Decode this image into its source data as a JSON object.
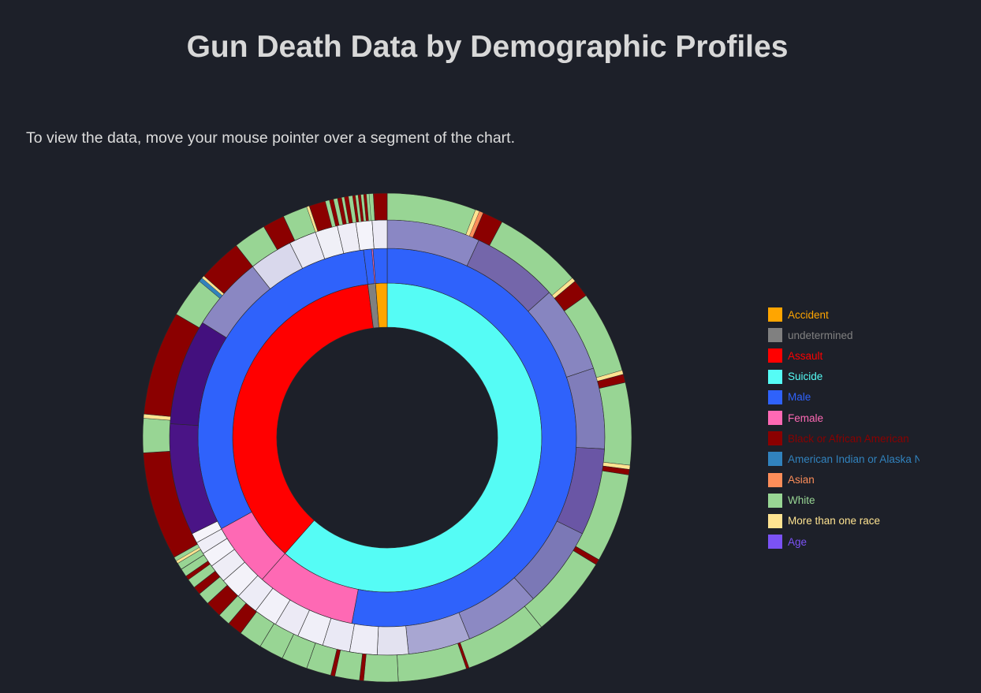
{
  "title": "Gun Death Data by Demographic Profiles",
  "instructions": "To view the data, move your mouse pointer over a segment of the chart.",
  "legend": [
    {
      "label": "Accident",
      "color": "#ffa500"
    },
    {
      "label": "undetermined",
      "color": "#808080"
    },
    {
      "label": "Assault",
      "color": "#ff0000"
    },
    {
      "label": "Suicide",
      "color": "#55fcf5"
    },
    {
      "label": "Male",
      "color": "#2f62fb"
    },
    {
      "label": "Female",
      "color": "#fe69b4"
    },
    {
      "label": "Black or African American",
      "color": "#8b0000"
    },
    {
      "label": "American Indian or Alaska Native",
      "color": "#3182bd"
    },
    {
      "label": "Asian",
      "color": "#fc8d59"
    },
    {
      "label": "White",
      "color": "#98d594"
    },
    {
      "label": "More than one race",
      "color": "#fee391"
    },
    {
      "label": "Age",
      "color": "#7b52f5"
    }
  ],
  "chart_data": {
    "type": "sunburst",
    "title": "Gun Death Data by Demographic Profiles",
    "start_angle_deg": 0,
    "rings": [
      {
        "level": "intent",
        "segments": [
          {
            "name": "Suicide",
            "value": 61.5,
            "color": "#55fcf5"
          },
          {
            "name": "Assault",
            "value": 36.5,
            "color": "#ff0000"
          },
          {
            "name": "undetermined",
            "value": 0.8,
            "color": "#808080"
          },
          {
            "name": "Accident",
            "value": 1.2,
            "color": "#ffa500"
          }
        ]
      },
      {
        "level": "sex",
        "segments": [
          {
            "name": "Male",
            "value": 53,
            "color": "#2f62fb"
          },
          {
            "name": "Female",
            "value": 8.5,
            "color": "#fe69b4"
          },
          {
            "name": "Female",
            "value": 5.5,
            "color": "#fe69b4"
          },
          {
            "name": "Male",
            "value": 31,
            "color": "#2f62fb"
          },
          {
            "name": "Male",
            "value": 0.7,
            "color": "#2f62fb"
          },
          {
            "name": "Female",
            "value": 0.1,
            "color": "#fe69b4"
          },
          {
            "name": "Male",
            "value": 1.2,
            "color": "#2f62fb"
          }
        ]
      },
      {
        "level": "age",
        "segments": [
          {
            "name": "Age",
            "value": 7.5,
            "color": "#8a87c4"
          },
          {
            "name": "Age",
            "value": 7,
            "color": "#7466aa"
          },
          {
            "name": "Age",
            "value": 7,
            "color": "#8785c0"
          },
          {
            "name": "Age",
            "value": 6.5,
            "color": "#807dba"
          },
          {
            "name": "Age",
            "value": 7,
            "color": "#6a56a5"
          },
          {
            "name": "Age",
            "value": 6.5,
            "color": "#7b78b6"
          },
          {
            "name": "Age",
            "value": 6,
            "color": "#8c89c3"
          },
          {
            "name": "Age",
            "value": 5,
            "color": "#a8a6d2"
          },
          {
            "name": "Age",
            "value": 2.5,
            "color": "#e3e2f0"
          },
          {
            "name": "Age",
            "value": 2.2,
            "color": "#eeedf7"
          },
          {
            "name": "Age",
            "value": 2.2,
            "color": "#eae9f5"
          },
          {
            "name": "Age",
            "value": 2.1,
            "color": "#f0eff8"
          },
          {
            "name": "Age",
            "value": 2,
            "color": "#eceaf5"
          },
          {
            "name": "Age",
            "value": 1.9,
            "color": "#f2f1f9"
          },
          {
            "name": "Age",
            "value": 1.8,
            "color": "#edecf6"
          },
          {
            "name": "Age",
            "value": 1.7,
            "color": "#f3f2f9"
          },
          {
            "name": "Age",
            "value": 1.5,
            "color": "#eeedf6"
          },
          {
            "name": "Age",
            "value": 1.2,
            "color": "#f4f3fa"
          },
          {
            "name": "Age",
            "value": 1,
            "color": "#efeef7"
          },
          {
            "name": "Age",
            "value": 0.8,
            "color": "#f5f4fa"
          },
          {
            "name": "Age",
            "value": 9,
            "color": "#4a1486"
          },
          {
            "name": "Age",
            "value": 8.5,
            "color": "#43107e"
          },
          {
            "name": "Age",
            "value": 6,
            "color": "#8a87c2"
          },
          {
            "name": "Age",
            "value": 3.5,
            "color": "#d9d8ec"
          },
          {
            "name": "Age",
            "value": 2.2,
            "color": "#e9e8f4"
          },
          {
            "name": "Age",
            "value": 1.8,
            "color": "#f0f0f7"
          },
          {
            "name": "Age",
            "value": 1.5,
            "color": "#eeedf6"
          },
          {
            "name": "Age",
            "value": 1.3,
            "color": "#f4f3fa"
          },
          {
            "name": "Age",
            "value": 1.2,
            "color": "#eceaf5"
          }
        ]
      },
      {
        "level": "race",
        "segments": [
          {
            "name": "White",
            "value": 6.5,
            "color": "#98d594"
          },
          {
            "name": "More than one race",
            "value": 0.3,
            "color": "#fee391"
          },
          {
            "name": "Asian",
            "value": 0.3,
            "color": "#fc8d59"
          },
          {
            "name": "Black or African American",
            "value": 1.5,
            "color": "#8b0000"
          },
          {
            "name": "White",
            "value": 6.5,
            "color": "#98d594"
          },
          {
            "name": "More than one race",
            "value": 0.3,
            "color": "#fee391"
          },
          {
            "name": "Black or African American",
            "value": 1.3,
            "color": "#8b0000"
          },
          {
            "name": "White",
            "value": 6,
            "color": "#98d594"
          },
          {
            "name": "More than one race",
            "value": 0.3,
            "color": "#fee391"
          },
          {
            "name": "Black or African American",
            "value": 0.6,
            "color": "#8b0000"
          },
          {
            "name": "White",
            "value": 6,
            "color": "#98d594"
          },
          {
            "name": "More than one race",
            "value": 0.3,
            "color": "#fee391"
          },
          {
            "name": "Black or African American",
            "value": 0.4,
            "color": "#8b0000"
          },
          {
            "name": "White",
            "value": 6.5,
            "color": "#98d594"
          },
          {
            "name": "Black or African American",
            "value": 0.4,
            "color": "#8b0000"
          },
          {
            "name": "White",
            "value": 6,
            "color": "#98d594"
          },
          {
            "name": "White",
            "value": 6,
            "color": "#98d594"
          },
          {
            "name": "Black or African American",
            "value": 0.2,
            "color": "#8b0000"
          },
          {
            "name": "White",
            "value": 5,
            "color": "#98d594"
          },
          {
            "name": "White",
            "value": 2.5,
            "color": "#98d594"
          },
          {
            "name": "Black or African American",
            "value": 0.3,
            "color": "#8b0000"
          },
          {
            "name": "White",
            "value": 1.8,
            "color": "#98d594"
          },
          {
            "name": "Black or African American",
            "value": 0.3,
            "color": "#8b0000"
          },
          {
            "name": "White",
            "value": 1.8,
            "color": "#98d594"
          },
          {
            "name": "White",
            "value": 1.9,
            "color": "#98d594"
          },
          {
            "name": "White",
            "value": 1.8,
            "color": "#98d594"
          },
          {
            "name": "White",
            "value": 1.7,
            "color": "#98d594"
          },
          {
            "name": "Black or African American",
            "value": 1.1,
            "color": "#8b0000"
          },
          {
            "name": "White",
            "value": 0.9,
            "color": "#98d594"
          },
          {
            "name": "Black or African American",
            "value": 1.2,
            "color": "#8b0000"
          },
          {
            "name": "White",
            "value": 0.9,
            "color": "#98d594"
          },
          {
            "name": "Black or African American",
            "value": 0.6,
            "color": "#8b0000"
          },
          {
            "name": "White",
            "value": 0.7,
            "color": "#98d594"
          },
          {
            "name": "Black or African American",
            "value": 0.3,
            "color": "#8b0000"
          },
          {
            "name": "White",
            "value": 0.6,
            "color": "#98d594"
          },
          {
            "name": "White",
            "value": 0.5,
            "color": "#98d594"
          },
          {
            "name": "More than one race",
            "value": 0.2,
            "color": "#fee391"
          },
          {
            "name": "White",
            "value": 0.3,
            "color": "#98d594"
          },
          {
            "name": "Black or African American",
            "value": 7.9,
            "color": "#8b0000"
          },
          {
            "name": "White",
            "value": 2.5,
            "color": "#98d594"
          },
          {
            "name": "More than one race",
            "value": 0.3,
            "color": "#fee391"
          },
          {
            "name": "Black or African American",
            "value": 7.6,
            "color": "#8b0000"
          },
          {
            "name": "White",
            "value": 2.9,
            "color": "#98d594"
          },
          {
            "name": "American Indian or Alaska Native",
            "value": 0.3,
            "color": "#3182bd"
          },
          {
            "name": "More than one race",
            "value": 0.2,
            "color": "#fee391"
          },
          {
            "name": "Black or African American",
            "value": 3.2,
            "color": "#8b0000"
          },
          {
            "name": "White",
            "value": 2.4,
            "color": "#98d594"
          },
          {
            "name": "Black or African American",
            "value": 1.6,
            "color": "#8b0000"
          },
          {
            "name": "White",
            "value": 1.8,
            "color": "#98d594"
          },
          {
            "name": "More than one race",
            "value": 0.2,
            "color": "#fee391"
          },
          {
            "name": "Black or African American",
            "value": 1.2,
            "color": "#8b0000"
          },
          {
            "name": "White",
            "value": 0.3,
            "color": "#98d594"
          },
          {
            "name": "Black or African American",
            "value": 0.3,
            "color": "#8b0000"
          },
          {
            "name": "White",
            "value": 0.3,
            "color": "#98d594"
          },
          {
            "name": "Black or African American",
            "value": 0.3,
            "color": "#8b0000"
          },
          {
            "name": "White",
            "value": 0.2,
            "color": "#98d594"
          },
          {
            "name": "Black or African American",
            "value": 0.3,
            "color": "#8b0000"
          },
          {
            "name": "White",
            "value": 0.3,
            "color": "#98d594"
          },
          {
            "name": "Black or African American",
            "value": 0.2,
            "color": "#8b0000"
          },
          {
            "name": "White",
            "value": 0.2,
            "color": "#98d594"
          },
          {
            "name": "Black or African American",
            "value": 0.2,
            "color": "#8b0000"
          },
          {
            "name": "White",
            "value": 0.2,
            "color": "#98d594"
          },
          {
            "name": "Black or African American",
            "value": 0.2,
            "color": "#8b0000"
          },
          {
            "name": "White",
            "value": 0.2,
            "color": "#98d594"
          },
          {
            "name": "White",
            "value": 0.3,
            "color": "#98d594"
          },
          {
            "name": "Black or African American",
            "value": 1.0,
            "color": "#8b0000"
          }
        ]
      }
    ]
  }
}
